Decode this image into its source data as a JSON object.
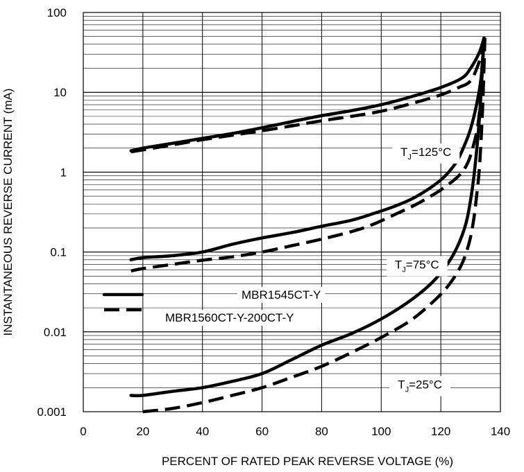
{
  "chart_data": {
    "type": "line",
    "xlabel": "PERCENT OF RATED PEAK REVERSE VOLTAGE (%)",
    "ylabel": "INSTANTANEOUS REVERSE CURRENT (mA)",
    "xlim": [
      0,
      140
    ],
    "ylim": [
      0.001,
      100
    ],
    "yscale": "log",
    "grid": true,
    "x_ticks": [
      "0",
      "20",
      "40",
      "60",
      "80",
      "100",
      "120",
      "140"
    ],
    "y_ticks": [
      "0.001",
      "0.01",
      "0.1",
      "1",
      "10",
      "100"
    ],
    "legend": {
      "placement": "left-center",
      "entries": [
        {
          "label": "MBR1545CT-Y",
          "style": "solid"
        },
        {
          "label": "MBR1560CT-Y-200CT-Y",
          "style": "dashed"
        }
      ]
    },
    "annotations": [
      {
        "prefix": "T",
        "sub": "J",
        "suffix": "=125°C",
        "x": 115,
        "y": 1.8
      },
      {
        "prefix": "T",
        "sub": "J",
        "suffix": "=75°C",
        "x": 112,
        "y": 0.07
      },
      {
        "prefix": "T",
        "sub": "J",
        "suffix": "=25°C",
        "x": 113,
        "y": 0.0022
      }
    ],
    "series": [
      {
        "device": "MBR1545CT-Y",
        "temperature": "125°C",
        "style": "solid",
        "points": [
          [
            16,
            1.85
          ],
          [
            20,
            2.0
          ],
          [
            30,
            2.3
          ],
          [
            40,
            2.65
          ],
          [
            50,
            3.05
          ],
          [
            60,
            3.6
          ],
          [
            70,
            4.3
          ],
          [
            80,
            5.1
          ],
          [
            90,
            5.9
          ],
          [
            100,
            7.0
          ],
          [
            110,
            8.8
          ],
          [
            120,
            11.5
          ],
          [
            127,
            15
          ],
          [
            130,
            20
          ],
          [
            133,
            32
          ],
          [
            134.5,
            48
          ]
        ]
      },
      {
        "device": "MBR1560CT-Y-200CT-Y",
        "temperature": "125°C",
        "style": "dashed",
        "points": [
          [
            16,
            1.8
          ],
          [
            20,
            1.9
          ],
          [
            30,
            2.2
          ],
          [
            40,
            2.55
          ],
          [
            50,
            2.9
          ],
          [
            60,
            3.3
          ],
          [
            70,
            3.8
          ],
          [
            80,
            4.4
          ],
          [
            90,
            5.0
          ],
          [
            100,
            5.8
          ],
          [
            110,
            7.2
          ],
          [
            120,
            9.3
          ],
          [
            126,
            11.5
          ],
          [
            130,
            14
          ],
          [
            133,
            25
          ],
          [
            134.5,
            48
          ]
        ]
      },
      {
        "device": "MBR1545CT-Y",
        "temperature": "75°C",
        "style": "solid",
        "points": [
          [
            16,
            0.08
          ],
          [
            20,
            0.085
          ],
          [
            30,
            0.09
          ],
          [
            40,
            0.1
          ],
          [
            50,
            0.125
          ],
          [
            60,
            0.15
          ],
          [
            70,
            0.175
          ],
          [
            80,
            0.21
          ],
          [
            90,
            0.25
          ],
          [
            97,
            0.3
          ],
          [
            105,
            0.38
          ],
          [
            112,
            0.5
          ],
          [
            120,
            0.8
          ],
          [
            125,
            1.3
          ],
          [
            128,
            2.2
          ],
          [
            130,
            3.5
          ],
          [
            132,
            7
          ],
          [
            133.5,
            15
          ],
          [
            134.5,
            48
          ]
        ]
      },
      {
        "device": "MBR1560CT-Y-200CT-Y",
        "temperature": "75°C",
        "style": "dashed",
        "points": [
          [
            16,
            0.058
          ],
          [
            20,
            0.062
          ],
          [
            30,
            0.07
          ],
          [
            40,
            0.079
          ],
          [
            50,
            0.087
          ],
          [
            60,
            0.1
          ],
          [
            70,
            0.12
          ],
          [
            80,
            0.145
          ],
          [
            90,
            0.18
          ],
          [
            97,
            0.22
          ],
          [
            105,
            0.3
          ],
          [
            112,
            0.4
          ],
          [
            120,
            0.6
          ],
          [
            126,
            0.9
          ],
          [
            129,
            1.3
          ],
          [
            131,
            2.2
          ],
          [
            132.5,
            4
          ],
          [
            133.5,
            10
          ],
          [
            134.5,
            48
          ]
        ]
      },
      {
        "device": "MBR1545CT-Y",
        "temperature": "25°C",
        "style": "solid",
        "points": [
          [
            16,
            0.0016
          ],
          [
            20,
            0.0016
          ],
          [
            30,
            0.0018
          ],
          [
            40,
            0.002
          ],
          [
            50,
            0.0024
          ],
          [
            60,
            0.003
          ],
          [
            70,
            0.0045
          ],
          [
            80,
            0.0068
          ],
          [
            90,
            0.0095
          ],
          [
            100,
            0.0145
          ],
          [
            110,
            0.025
          ],
          [
            118,
            0.045
          ],
          [
            124,
            0.09
          ],
          [
            128,
            0.2
          ],
          [
            130,
            0.45
          ],
          [
            131.5,
            1.2
          ],
          [
            133,
            5
          ],
          [
            134.5,
            48
          ]
        ]
      },
      {
        "device": "MBR1560CT-Y-200CT-Y",
        "temperature": "25°C",
        "style": "dashed",
        "points": [
          [
            20,
            0.001
          ],
          [
            30,
            0.0011
          ],
          [
            40,
            0.0013
          ],
          [
            50,
            0.0016
          ],
          [
            60,
            0.002
          ],
          [
            70,
            0.0027
          ],
          [
            80,
            0.0037
          ],
          [
            90,
            0.0055
          ],
          [
            100,
            0.0085
          ],
          [
            110,
            0.014
          ],
          [
            118,
            0.025
          ],
          [
            123,
            0.04
          ],
          [
            127,
            0.07
          ],
          [
            129.5,
            0.13
          ],
          [
            131,
            0.25
          ],
          [
            132,
            0.5
          ],
          [
            133,
            1.2
          ],
          [
            134,
            6
          ],
          [
            134.8,
            48
          ]
        ]
      }
    ]
  }
}
